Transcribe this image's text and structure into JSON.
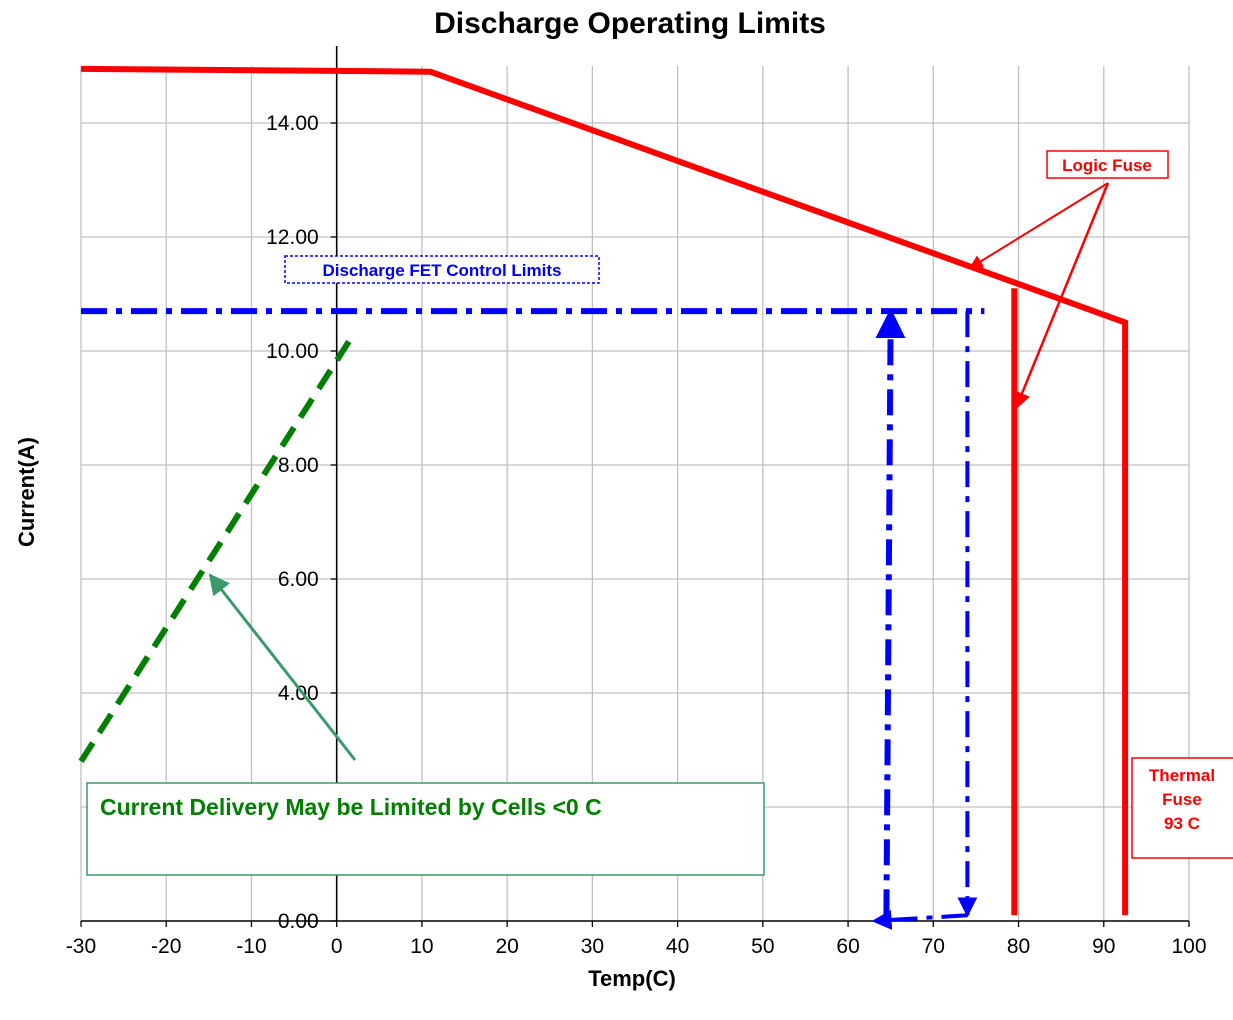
{
  "chart_data": {
    "type": "line",
    "title": "Discharge Operating Limits",
    "xlabel": "Temp(C)",
    "ylabel": "Current(A)",
    "xlim": [
      -30,
      100
    ],
    "ylim": [
      0,
      15
    ],
    "x_ticks": [
      "-30",
      "-20",
      "-10",
      "0",
      "10",
      "20",
      "30",
      "40",
      "50",
      "60",
      "70",
      "80",
      "90",
      "100"
    ],
    "y_ticks": [
      "0.00",
      "4.00",
      "6.00",
      "8.00",
      "10.00",
      "12.00",
      "14.00"
    ],
    "grid": true,
    "series": [
      {
        "color": "#ff0000",
        "style": "solid",
        "points": [
          [
            -30,
            14.95
          ],
          [
            11,
            14.9
          ],
          [
            92.5,
            10.5
          ],
          [
            92.5,
            0.1
          ]
        ]
      },
      {
        "color": "#ff0000",
        "style": "solid",
        "points": [
          [
            79.5,
            11.1
          ],
          [
            79.5,
            0.1
          ]
        ]
      },
      {
        "color": "#0000ff",
        "style": "dash-dot",
        "points": [
          [
            -30,
            10.7
          ],
          [
            76,
            10.7
          ]
        ]
      },
      {
        "color": "#0000ff",
        "style": "dash-dot",
        "points": [
          [
            74,
            10.7
          ],
          [
            74,
            0.1
          ]
        ]
      },
      {
        "color": "#0000ff",
        "style": "dash-dot",
        "points": [
          [
            64.5,
            0.1
          ],
          [
            65,
            10.7
          ]
        ]
      },
      {
        "color": "#0000ff",
        "style": "dash-dot",
        "points": [
          [
            74,
            0.1
          ],
          [
            63,
            0.0
          ]
        ]
      },
      {
        "color": "#008000",
        "style": "dashed",
        "points": [
          [
            -30,
            2.8
          ],
          [
            2,
            10.3
          ]
        ]
      }
    ],
    "annotations": [
      {
        "text": "Logic Fuse",
        "color": "#ff0000"
      },
      {
        "text": "Discharge FET Control Limits",
        "color": "#0000ff"
      },
      {
        "text": "Current Delivery May be Limited by Cells <0  C",
        "color": "#008000"
      },
      {
        "lines": [
          "Thermal",
          "Fuse",
          "93 C"
        ],
        "color": "#ff0000"
      }
    ]
  }
}
